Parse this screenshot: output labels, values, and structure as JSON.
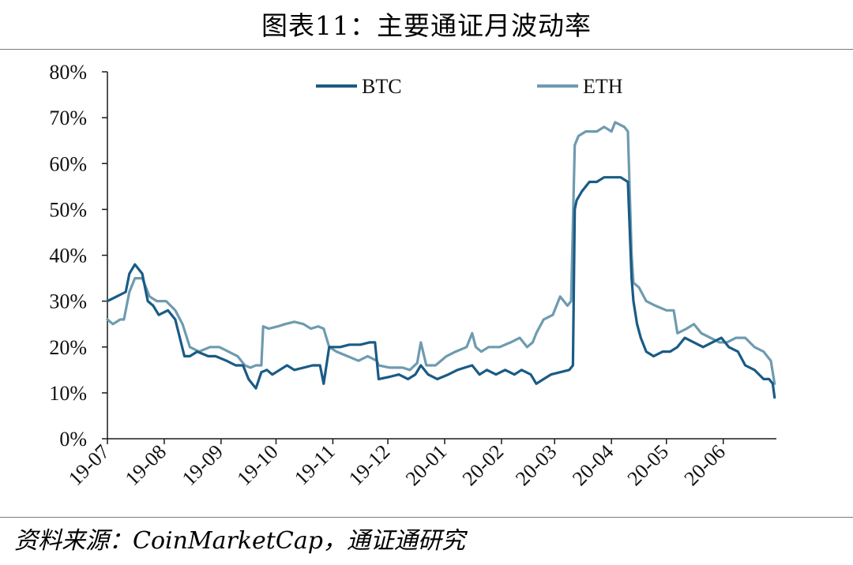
{
  "title": "图表11：主要通证月波动率",
  "source": "资料来源：CoinMarketCap，通证通研究",
  "colors": {
    "btc": "#1a5b85",
    "eth": "#6e9bb0",
    "axis": "#1a1a1a",
    "text": "#111111"
  },
  "chart_data": {
    "type": "line",
    "title": "",
    "xlabel": "",
    "ylabel": "",
    "ylim": [
      0,
      0.8
    ],
    "yticks": [
      0,
      0.1,
      0.2,
      0.3,
      0.4,
      0.5,
      0.6,
      0.7,
      0.8
    ],
    "ytick_labels": [
      "0%",
      "10%",
      "20%",
      "30%",
      "40%",
      "50%",
      "60%",
      "70%",
      "80%"
    ],
    "x_axis": "date",
    "xlim": [
      "2019-07-01",
      "2020-06-30"
    ],
    "xticks": [
      "2019-07-01",
      "2019-08-01",
      "2019-09-01",
      "2019-10-01",
      "2019-11-01",
      "2019-12-01",
      "2020-01-01",
      "2020-02-01",
      "2020-03-01",
      "2020-04-01",
      "2020-05-01",
      "2020-06-01"
    ],
    "xtick_labels": [
      "19-07",
      "19-08",
      "19-09",
      "19-10",
      "19-11",
      "19-12",
      "20-01",
      "20-02",
      "20-03",
      "20-04",
      "20-05",
      "20-06"
    ],
    "grid": false,
    "legend": "top-center",
    "series": [
      {
        "name": "BTC",
        "x": [
          "2019-07-01",
          "2019-07-06",
          "2019-07-11",
          "2019-07-13",
          "2019-07-16",
          "2019-07-20",
          "2019-07-23",
          "2019-07-26",
          "2019-07-29",
          "2019-08-03",
          "2019-08-07",
          "2019-08-12",
          "2019-08-15",
          "2019-08-19",
          "2019-08-25",
          "2019-08-29",
          "2019-09-04",
          "2019-09-09",
          "2019-09-13",
          "2019-09-16",
          "2019-09-18",
          "2019-09-20",
          "2019-09-23",
          "2019-09-26",
          "2019-09-29",
          "2019-10-03",
          "2019-10-07",
          "2019-10-11",
          "2019-10-16",
          "2019-10-21",
          "2019-10-25",
          "2019-10-27",
          "2019-10-30",
          "2019-11-05",
          "2019-11-10",
          "2019-11-16",
          "2019-11-21",
          "2019-11-24",
          "2019-11-26",
          "2019-12-02",
          "2019-12-07",
          "2019-12-12",
          "2019-12-16",
          "2019-12-19",
          "2019-12-23",
          "2019-12-28",
          "2020-01-03",
          "2020-01-08",
          "2020-01-12",
          "2020-01-16",
          "2020-01-20",
          "2020-01-24",
          "2020-01-29",
          "2020-02-03",
          "2020-02-08",
          "2020-02-12",
          "2020-02-17",
          "2020-02-20",
          "2020-02-24",
          "2020-02-28",
          "2020-03-04",
          "2020-03-09",
          "2020-03-11",
          "2020-03-12",
          "2020-03-13",
          "2020-03-16",
          "2020-03-20",
          "2020-03-24",
          "2020-03-28",
          "2020-04-02",
          "2020-04-06",
          "2020-04-10",
          "2020-04-12",
          "2020-04-13",
          "2020-04-15",
          "2020-04-17",
          "2020-04-20",
          "2020-04-24",
          "2020-04-29",
          "2020-05-03",
          "2020-05-07",
          "2020-05-11",
          "2020-05-16",
          "2020-05-21",
          "2020-05-26",
          "2020-05-31",
          "2020-06-04",
          "2020-06-09",
          "2020-06-13",
          "2020-06-18",
          "2020-06-23",
          "2020-06-26",
          "2020-06-28",
          "2020-06-29"
        ],
        "values": [
          0.3,
          0.31,
          0.32,
          0.36,
          0.38,
          0.36,
          0.3,
          0.29,
          0.27,
          0.28,
          0.26,
          0.18,
          0.18,
          0.19,
          0.18,
          0.18,
          0.17,
          0.16,
          0.16,
          0.13,
          0.12,
          0.11,
          0.145,
          0.15,
          0.14,
          0.15,
          0.16,
          0.15,
          0.155,
          0.16,
          0.16,
          0.12,
          0.2,
          0.2,
          0.205,
          0.205,
          0.21,
          0.21,
          0.13,
          0.135,
          0.14,
          0.13,
          0.14,
          0.16,
          0.14,
          0.13,
          0.14,
          0.15,
          0.155,
          0.16,
          0.14,
          0.15,
          0.14,
          0.15,
          0.14,
          0.15,
          0.14,
          0.12,
          0.13,
          0.14,
          0.145,
          0.15,
          0.16,
          0.5,
          0.52,
          0.54,
          0.56,
          0.56,
          0.57,
          0.57,
          0.57,
          0.56,
          0.35,
          0.3,
          0.25,
          0.22,
          0.19,
          0.18,
          0.19,
          0.19,
          0.2,
          0.22,
          0.21,
          0.2,
          0.21,
          0.22,
          0.2,
          0.19,
          0.16,
          0.15,
          0.13,
          0.13,
          0.12,
          0.09
        ]
      },
      {
        "name": "ETH",
        "x": [
          "2019-07-01",
          "2019-07-04",
          "2019-07-08",
          "2019-07-10",
          "2019-07-13",
          "2019-07-16",
          "2019-07-20",
          "2019-07-24",
          "2019-07-28",
          "2019-08-02",
          "2019-08-07",
          "2019-08-11",
          "2019-08-15",
          "2019-08-20",
          "2019-08-26",
          "2019-08-31",
          "2019-09-05",
          "2019-09-10",
          "2019-09-14",
          "2019-09-17",
          "2019-09-20",
          "2019-09-23",
          "2019-09-24",
          "2019-09-27",
          "2019-10-02",
          "2019-10-06",
          "2019-10-11",
          "2019-10-16",
          "2019-10-20",
          "2019-10-24",
          "2019-10-27",
          "2019-10-30",
          "2019-11-03",
          "2019-11-09",
          "2019-11-15",
          "2019-11-20",
          "2019-11-25",
          "2019-11-26",
          "2019-12-02",
          "2019-12-09",
          "2019-12-13",
          "2019-12-17",
          "2019-12-19",
          "2019-12-22",
          "2019-12-27",
          "2020-01-02",
          "2020-01-07",
          "2020-01-13",
          "2020-01-16",
          "2020-01-18",
          "2020-01-21",
          "2020-01-25",
          "2020-01-31",
          "2020-02-06",
          "2020-02-11",
          "2020-02-15",
          "2020-02-18",
          "2020-02-20",
          "2020-02-24",
          "2020-02-29",
          "2020-03-04",
          "2020-03-08",
          "2020-03-10",
          "2020-03-12",
          "2020-03-14",
          "2020-03-18",
          "2020-03-24",
          "2020-03-28",
          "2020-04-01",
          "2020-04-03",
          "2020-04-08",
          "2020-04-10",
          "2020-04-12",
          "2020-04-13",
          "2020-04-16",
          "2020-04-20",
          "2020-04-25",
          "2020-05-01",
          "2020-05-05",
          "2020-05-07",
          "2020-05-12",
          "2020-05-16",
          "2020-05-20",
          "2020-05-25",
          "2020-05-30",
          "2020-06-03",
          "2020-06-08",
          "2020-06-13",
          "2020-06-18",
          "2020-06-23",
          "2020-06-27",
          "2020-06-29"
        ],
        "values": [
          0.26,
          0.25,
          0.26,
          0.26,
          0.32,
          0.35,
          0.35,
          0.31,
          0.3,
          0.3,
          0.28,
          0.25,
          0.2,
          0.19,
          0.2,
          0.2,
          0.19,
          0.18,
          0.16,
          0.155,
          0.16,
          0.16,
          0.245,
          0.24,
          0.245,
          0.25,
          0.255,
          0.25,
          0.24,
          0.245,
          0.24,
          0.2,
          0.19,
          0.18,
          0.17,
          0.18,
          0.17,
          0.16,
          0.155,
          0.155,
          0.15,
          0.165,
          0.21,
          0.16,
          0.16,
          0.18,
          0.19,
          0.2,
          0.23,
          0.2,
          0.19,
          0.2,
          0.2,
          0.21,
          0.22,
          0.2,
          0.21,
          0.23,
          0.26,
          0.27,
          0.31,
          0.29,
          0.3,
          0.64,
          0.66,
          0.67,
          0.67,
          0.68,
          0.67,
          0.69,
          0.68,
          0.67,
          0.4,
          0.34,
          0.33,
          0.3,
          0.29,
          0.28,
          0.28,
          0.23,
          0.24,
          0.25,
          0.23,
          0.22,
          0.21,
          0.21,
          0.22,
          0.22,
          0.2,
          0.19,
          0.17,
          0.12
        ]
      }
    ]
  }
}
